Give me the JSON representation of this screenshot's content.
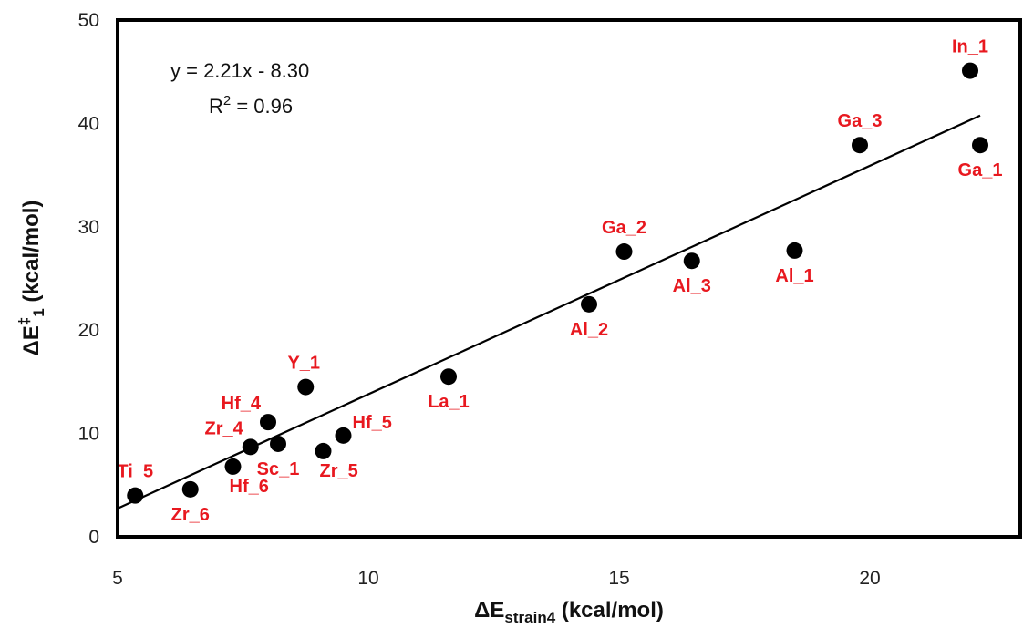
{
  "chart_data": {
    "type": "scatter",
    "xlabel": {
      "main": "ΔE",
      "sub": "strain4",
      "unit": " (kcal/mol)"
    },
    "ylabel": {
      "main": "ΔE",
      "sup": "‡",
      "sub": "1",
      "unit": " (kcal/mol)"
    },
    "xlim": [
      5,
      23
    ],
    "ylim": [
      0,
      50
    ],
    "xticks": [
      5,
      10,
      15,
      20
    ],
    "yticks": [
      0,
      10,
      20,
      30,
      40,
      50
    ],
    "grid": false,
    "legend": "none",
    "points": [
      {
        "label": "Ti_5",
        "x": 5.35,
        "y": 4.0,
        "label_pos": "above"
      },
      {
        "label": "Zr_6",
        "x": 6.45,
        "y": 4.6,
        "label_pos": "below"
      },
      {
        "label": "Hf_6",
        "x": 7.3,
        "y": 6.8,
        "label_pos": "below-right"
      },
      {
        "label": "Zr_4",
        "x": 7.65,
        "y": 8.7,
        "label_pos": "upper-left"
      },
      {
        "label": "Sc_1",
        "x": 8.2,
        "y": 9.0,
        "label_pos": "below"
      },
      {
        "label": "Hf_4",
        "x": 8.0,
        "y": 11.1,
        "label_pos": "upper-left"
      },
      {
        "label": "Y_1",
        "x": 8.75,
        "y": 14.5,
        "label_pos": "above-left"
      },
      {
        "label": "Zr_5",
        "x": 9.1,
        "y": 8.3,
        "label_pos": "below-right"
      },
      {
        "label": "Hf_5",
        "x": 9.5,
        "y": 9.8,
        "label_pos": "upper-right"
      },
      {
        "label": "La_1",
        "x": 11.6,
        "y": 15.5,
        "label_pos": "below"
      },
      {
        "label": "Al_2",
        "x": 14.4,
        "y": 22.5,
        "label_pos": "below"
      },
      {
        "label": "Ga_2",
        "x": 15.1,
        "y": 27.6,
        "label_pos": "above"
      },
      {
        "label": "Al_3",
        "x": 16.45,
        "y": 26.7,
        "label_pos": "below"
      },
      {
        "label": "Al_1",
        "x": 18.5,
        "y": 27.7,
        "label_pos": "below"
      },
      {
        "label": "Ga_3",
        "x": 19.8,
        "y": 37.9,
        "label_pos": "above"
      },
      {
        "label": "Ga_1",
        "x": 22.2,
        "y": 37.9,
        "label_pos": "below"
      },
      {
        "label": "In_1",
        "x": 22.0,
        "y": 45.1,
        "label_pos": "above"
      }
    ],
    "trendline": {
      "slope": 2.21,
      "intercept": -8.3,
      "x_start": 5,
      "x_end": 22.2
    },
    "annotations": {
      "equation": "y = 2.21x - 8.30",
      "r2_prefix": "R",
      "r2_sup": "2",
      "r2_value": " = 0.96"
    },
    "colors": {
      "points": "#000000",
      "labels": "#e8181f",
      "line": "#000000"
    }
  }
}
